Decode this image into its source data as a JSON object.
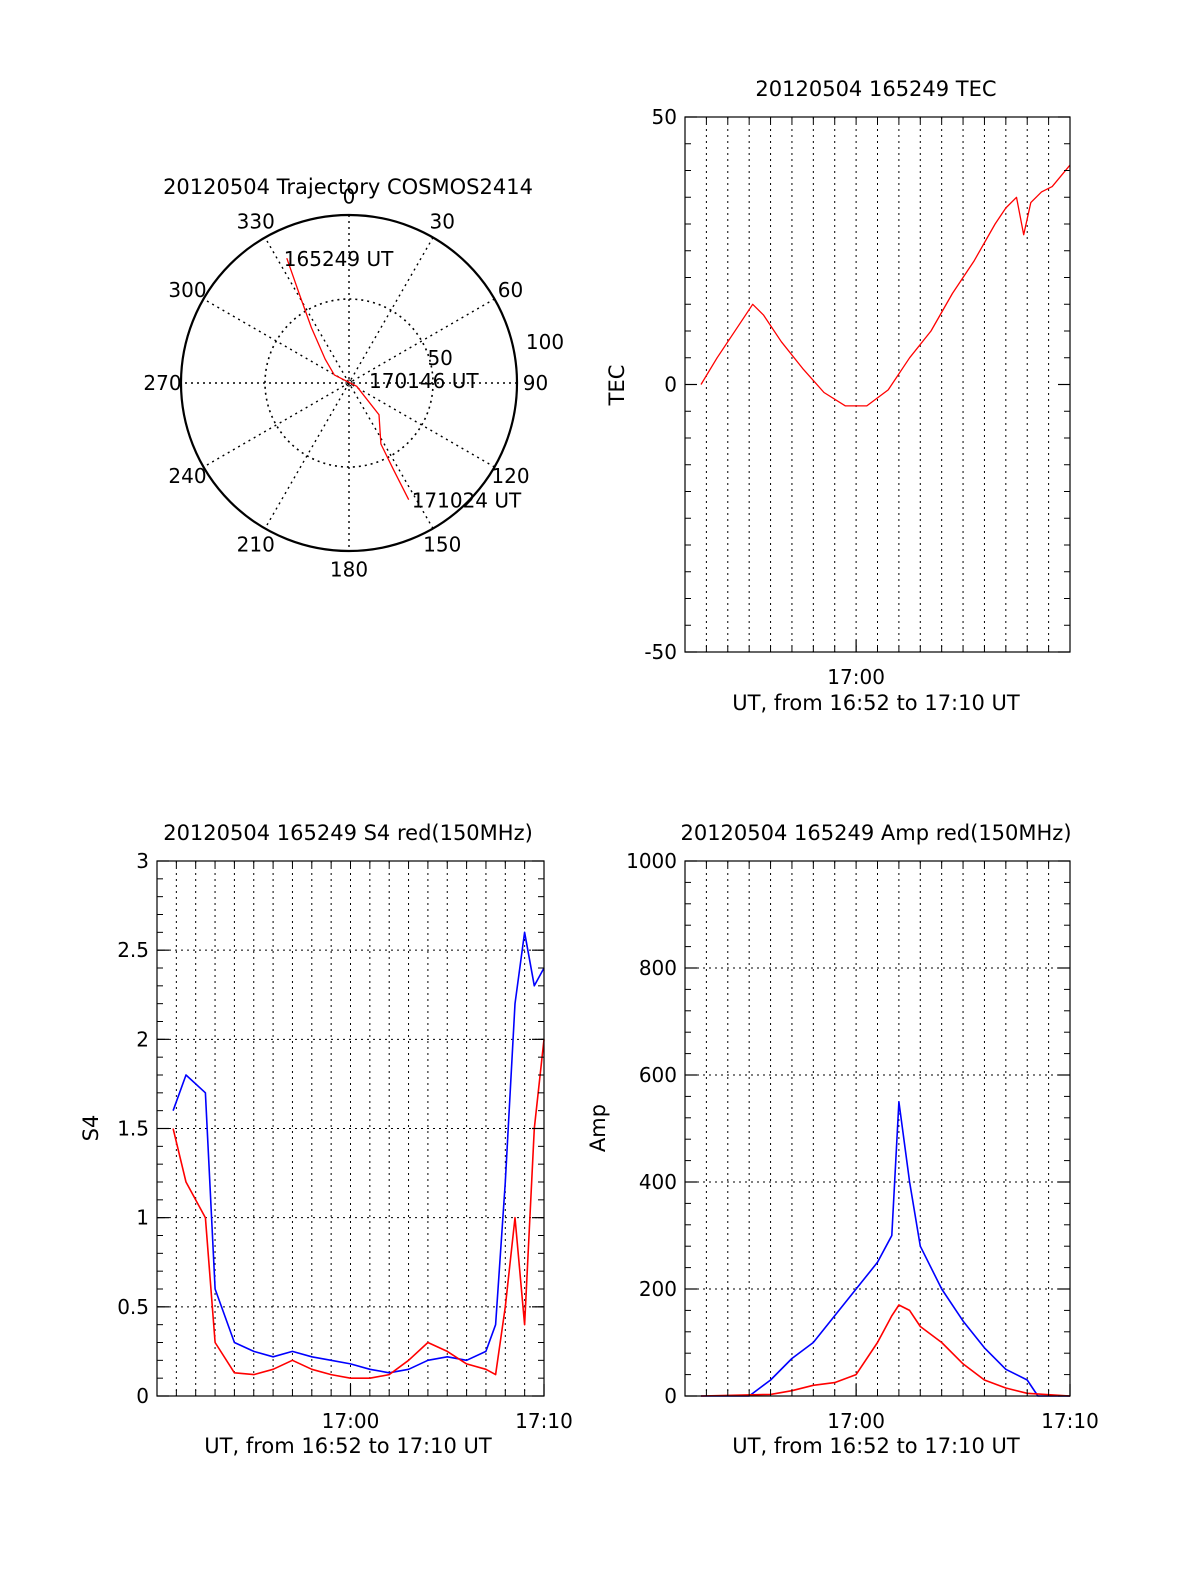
{
  "colors": {
    "red": "#ff0000",
    "blue": "#0000ff",
    "axis": "#000000",
    "grid": "#000000"
  },
  "chart_data": [
    {
      "id": "trajectory",
      "type": "polar",
      "title": "20120504 Trajectory COSMOS2414",
      "azimuth_labels": [
        "0",
        "30",
        "60",
        "90",
        "120",
        "150",
        "180",
        "210",
        "240",
        "270",
        "300",
        "330"
      ],
      "azimuth_deg": [
        0,
        30,
        60,
        90,
        120,
        150,
        180,
        210,
        240,
        270,
        300,
        330
      ],
      "radius_labels": [
        "50",
        "100"
      ],
      "radius_values": [
        50,
        100
      ],
      "rlim": [
        0,
        100
      ],
      "track_start_label": "165249 UT",
      "track_mid_label": "170146 UT",
      "track_end_label": "171024 UT",
      "track": {
        "color": "red",
        "points": [
          {
            "az": 333.5,
            "r": 83
          },
          {
            "az": 330.7,
            "r": 60
          },
          {
            "az": 325.9,
            "r": 40
          },
          {
            "az": 315.0,
            "r": 20
          },
          {
            "az": 298.7,
            "r": 10
          },
          {
            "az": 113.2,
            "r": 5
          },
          {
            "az": 136.6,
            "r": 26
          },
          {
            "az": 152.4,
            "r": 41
          },
          {
            "az": 152.8,
            "r": 58
          },
          {
            "az": 152.9,
            "r": 78
          }
        ]
      }
    },
    {
      "id": "tec",
      "type": "line",
      "title": "20120504 165249 TEC",
      "xlabel": "UT, from 16:52 to 17:10 UT",
      "ylabel": "TEC",
      "xlim": [
        "16:52",
        "17:10"
      ],
      "x_ticks": [
        "17:00"
      ],
      "ylim": [
        -50,
        50
      ],
      "y_ticks": [
        "50",
        "0",
        "-50"
      ],
      "y_tick_values": [
        50,
        0,
        -50
      ],
      "series": [
        {
          "color": "red",
          "x": [
            "16:52:45",
            "16:53:30",
            "16:54:30",
            "16:55:10",
            "16:55:40",
            "16:56:30",
            "16:57:30",
            "16:58:30",
            "16:59:30",
            "17:00:30",
            "17:01:30",
            "17:02:30",
            "17:03:30",
            "17:04:30",
            "17:05:30",
            "17:06:30",
            "17:07:00",
            "17:07:30",
            "17:07:50",
            "17:08:10",
            "17:08:40",
            "17:09:10",
            "17:10:00"
          ],
          "y": [
            0,
            5,
            11,
            15,
            13,
            8,
            3,
            -1.5,
            -4,
            -4,
            -1,
            5,
            10,
            17,
            23,
            30,
            33,
            35,
            28,
            34,
            36,
            37,
            41
          ]
        }
      ]
    },
    {
      "id": "s4",
      "type": "line",
      "title": "20120504 165249 S4 red(150MHz)",
      "xlabel": "UT, from 16:52 to 17:10 UT",
      "ylabel": "S4",
      "xlim": [
        "16:50",
        "17:10"
      ],
      "x_ticks": [
        "17:00",
        "17:10"
      ],
      "ylim": [
        0,
        3
      ],
      "y_ticks": [
        "3",
        "2.5",
        "2",
        "1.5",
        "1",
        "0.5",
        "0"
      ],
      "y_tick_values": [
        3,
        2.5,
        2,
        1.5,
        1,
        0.5,
        0
      ],
      "series": [
        {
          "color": "blue",
          "x": [
            "16:50:50",
            "16:51:30",
            "16:52:30",
            "16:53:00",
            "16:54:00",
            "16:55:00",
            "16:56:00",
            "16:57:00",
            "16:58:00",
            "16:59:00",
            "17:00:00",
            "17:01:00",
            "17:02:00",
            "17:03:00",
            "17:04:00",
            "17:05:00",
            "17:06:00",
            "17:07:00",
            "17:07:30",
            "17:08:00",
            "17:08:30",
            "17:09:00",
            "17:09:30",
            "17:10:00"
          ],
          "y": [
            1.6,
            1.8,
            1.7,
            0.6,
            0.3,
            0.25,
            0.22,
            0.25,
            0.22,
            0.2,
            0.18,
            0.15,
            0.13,
            0.15,
            0.2,
            0.22,
            0.2,
            0.25,
            0.4,
            1.2,
            2.2,
            2.6,
            2.3,
            2.4
          ]
        },
        {
          "color": "red",
          "x": [
            "16:50:50",
            "16:51:30",
            "16:52:30",
            "16:53:00",
            "16:54:00",
            "16:55:00",
            "16:56:00",
            "16:57:00",
            "16:58:00",
            "16:59:00",
            "17:00:00",
            "17:01:00",
            "17:02:00",
            "17:03:00",
            "17:04:00",
            "17:05:00",
            "17:06:00",
            "17:07:00",
            "17:07:30",
            "17:08:00",
            "17:08:30",
            "17:09:00",
            "17:09:30",
            "17:10:00"
          ],
          "y": [
            1.5,
            1.2,
            1.0,
            0.3,
            0.13,
            0.12,
            0.15,
            0.2,
            0.15,
            0.12,
            0.1,
            0.1,
            0.12,
            0.2,
            0.3,
            0.25,
            0.18,
            0.15,
            0.12,
            0.5,
            1.0,
            0.4,
            1.5,
            2.0
          ]
        }
      ]
    },
    {
      "id": "amp",
      "type": "line",
      "title": "20120504 165249 Amp red(150MHz)",
      "xlabel": "UT, from 16:52 to 17:10 UT",
      "ylabel": "Amp",
      "xlim": [
        "16:52",
        "17:10"
      ],
      "x_ticks": [
        "17:00",
        "17:10"
      ],
      "ylim": [
        0,
        1000
      ],
      "y_ticks": [
        "1000",
        "800",
        "600",
        "400",
        "200",
        "0"
      ],
      "y_tick_values": [
        1000,
        800,
        600,
        400,
        200,
        0
      ],
      "series": [
        {
          "color": "blue",
          "x": [
            "16:52:45",
            "16:55:00",
            "16:56:00",
            "16:57:00",
            "16:58:00",
            "16:59:00",
            "17:00:00",
            "17:01:00",
            "17:01:40",
            "17:02:00",
            "17:02:30",
            "17:03:00",
            "17:04:00",
            "17:05:00",
            "17:06:00",
            "17:07:00",
            "17:08:00",
            "17:08:30",
            "17:10:00"
          ],
          "y": [
            0,
            0,
            30,
            70,
            100,
            150,
            200,
            250,
            300,
            550,
            400,
            280,
            200,
            140,
            90,
            50,
            30,
            0,
            0
          ]
        },
        {
          "color": "red",
          "x": [
            "16:52:45",
            "16:56:00",
            "16:57:00",
            "16:58:00",
            "16:59:00",
            "17:00:00",
            "17:01:00",
            "17:01:40",
            "17:02:00",
            "17:02:30",
            "17:03:00",
            "17:04:00",
            "17:05:00",
            "17:06:00",
            "17:07:00",
            "17:08:00",
            "17:10:00"
          ],
          "y": [
            0,
            3,
            10,
            20,
            25,
            40,
            100,
            150,
            170,
            160,
            130,
            100,
            60,
            30,
            15,
            5,
            0
          ]
        }
      ]
    }
  ]
}
